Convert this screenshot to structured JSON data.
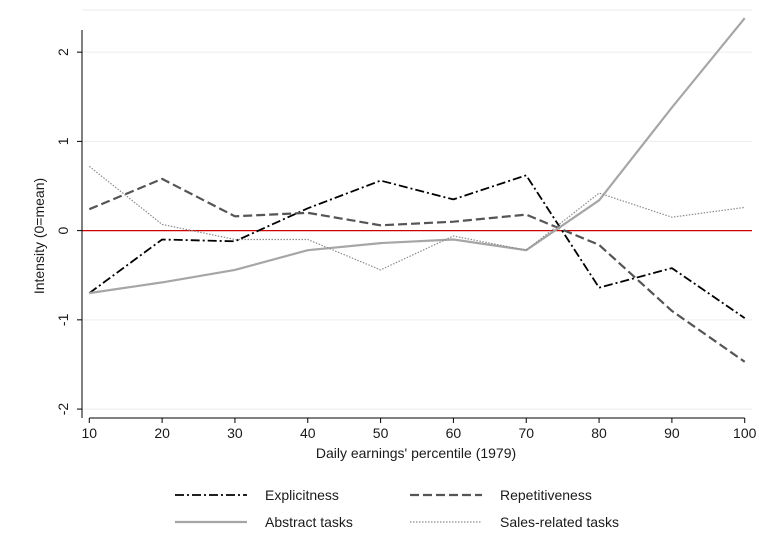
{
  "chart_data": {
    "type": "line",
    "xlabel": "Daily earnings' percentile (1979)",
    "ylabel": "Intensity (0=mean)",
    "x": [
      10,
      20,
      30,
      40,
      50,
      60,
      70,
      80,
      90,
      100
    ],
    "x_ticks": [
      10,
      20,
      30,
      40,
      50,
      60,
      70,
      80,
      90,
      100
    ],
    "y_ticks": [
      -2,
      -1,
      0,
      1,
      2
    ],
    "xlim": [
      9,
      101
    ],
    "ylim": [
      -2.1,
      2.45
    ],
    "grid": "horizontal",
    "reference_line": {
      "y": 0,
      "color": "#cc0000"
    },
    "legend_position": "bottom",
    "series": [
      {
        "name": "Explicitness",
        "style": "dash-dot",
        "color": "#000000",
        "values": [
          -0.7,
          -0.1,
          -0.12,
          0.25,
          0.56,
          0.35,
          0.62,
          -0.64,
          -0.42,
          -0.98
        ]
      },
      {
        "name": "Repetitiveness",
        "style": "dashed",
        "color": "#555555",
        "values": [
          0.24,
          0.58,
          0.16,
          0.2,
          0.06,
          0.1,
          0.18,
          -0.16,
          -0.9,
          -1.47
        ]
      },
      {
        "name": "Abstract tasks",
        "style": "solid",
        "color": "#a6a6a6",
        "values": [
          -0.7,
          -0.58,
          -0.44,
          -0.22,
          -0.14,
          -0.1,
          -0.22,
          0.34,
          1.38,
          2.38
        ]
      },
      {
        "name": "Sales-related tasks",
        "style": "dotted",
        "color": "#8c8c8c",
        "values": [
          0.72,
          0.07,
          -0.1,
          -0.1,
          -0.44,
          -0.06,
          -0.22,
          0.42,
          0.15,
          0.26
        ]
      }
    ]
  }
}
